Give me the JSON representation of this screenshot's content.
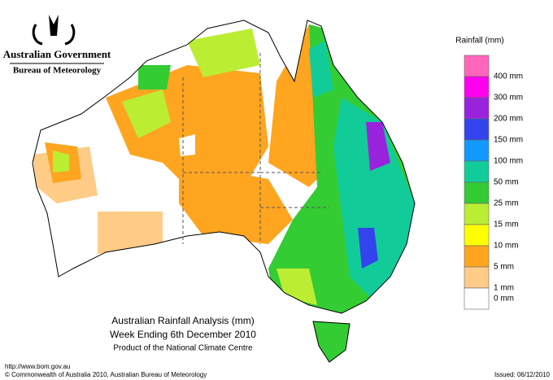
{
  "header": {
    "government": "Australian Government",
    "bureau": "Bureau of Meteorology"
  },
  "legend": {
    "title": "Rainfall (mm)",
    "colors": [
      "#ff66bb",
      "#ff00ee",
      "#9922dd",
      "#3344ee",
      "#1199ff",
      "#11cc99",
      "#33cc33",
      "#bbee33",
      "#ffff00",
      "#ffa520",
      "#ffcc88",
      "#ffffff"
    ],
    "labels": [
      "400 mm",
      "300 mm",
      "200 mm",
      "150 mm",
      "100 mm",
      "50 mm",
      "25 mm",
      "15 mm",
      "10 mm",
      "5 mm",
      "1 mm",
      "0 mm"
    ]
  },
  "caption": {
    "title": "Australian Rainfall Analysis (mm)",
    "subtitle": "Week Ending 6th December 2010",
    "product": "Product of the National Climate Centre"
  },
  "footer": {
    "url": "http://www.bom.gov.au",
    "copyright": "© Commonwealth of Australia 2010, Australian Bureau of Meteorology",
    "issued": "Issued: 06/12/2010"
  }
}
